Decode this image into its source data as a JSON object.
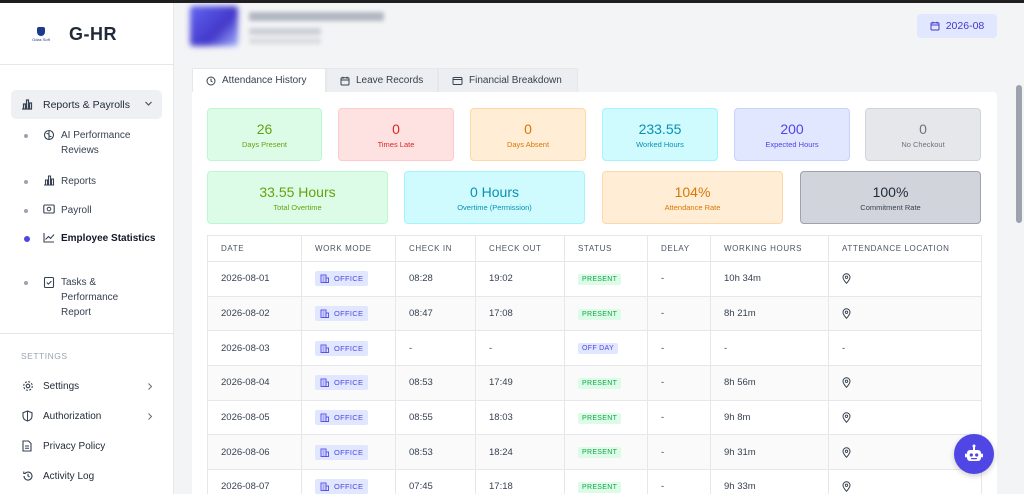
{
  "app": {
    "name": "G-HR",
    "logo_text": "Gdas Soft"
  },
  "sidebar": {
    "group": {
      "label": "Reports & Payrolls"
    },
    "sub_items": [
      {
        "label": "AI Performance Reviews",
        "icon": "brain-icon"
      },
      {
        "label": "Reports",
        "icon": "bar-chart-icon"
      },
      {
        "label": "Payroll",
        "icon": "banknote-icon"
      },
      {
        "label": "Employee Statistics",
        "icon": "line-chart-icon",
        "active": true
      },
      {
        "label": "Tasks & Performance Report",
        "icon": "clipboard-check-icon"
      }
    ],
    "section_label": "SETTINGS",
    "items": [
      {
        "label": "Settings",
        "icon": "gear-icon"
      },
      {
        "label": "Authorization",
        "icon": "shield-icon"
      },
      {
        "label": "Privacy Policy",
        "icon": "document-icon"
      },
      {
        "label": "Activity Log",
        "icon": "history-icon"
      }
    ]
  },
  "header": {
    "month": "2026-08"
  },
  "tabs": [
    {
      "label": "Attendance History",
      "icon": "clock-icon",
      "active": true
    },
    {
      "label": "Leave Records",
      "icon": "calendar-icon"
    },
    {
      "label": "Financial Breakdown",
      "icon": "wallet-icon"
    }
  ],
  "stats_row1": [
    {
      "value": "26",
      "label": "Days Present",
      "color": "green"
    },
    {
      "value": "0",
      "label": "Times Late",
      "color": "red"
    },
    {
      "value": "0",
      "label": "Days Absent",
      "color": "orange"
    },
    {
      "value": "233.55",
      "label": "Worked Hours",
      "color": "cyan"
    },
    {
      "value": "200",
      "label": "Expected Hours",
      "color": "indigo"
    },
    {
      "value": "0",
      "label": "No Checkout",
      "color": "gray"
    }
  ],
  "stats_row2": [
    {
      "value": "33.55 Hours",
      "label": "Total Overtime",
      "color": "green"
    },
    {
      "value": "0 Hours",
      "label": "Overtime (Permission)",
      "color": "cyan"
    },
    {
      "value": "104%",
      "label": "Attendance Rate",
      "color": "orange"
    },
    {
      "value": "100%",
      "label": "Commitment Rate",
      "color": "dark"
    }
  ],
  "table": {
    "columns": [
      "DATE",
      "WORK MODE",
      "CHECK IN",
      "CHECK OUT",
      "STATUS",
      "DELAY",
      "WORKING HOURS",
      "ATTENDANCE LOCATION"
    ],
    "rows": [
      {
        "date": "2026-08-01",
        "mode": "OFFICE",
        "check_in": "08:28",
        "check_out": "19:02",
        "status": "PRESENT",
        "delay": "-",
        "delay_color": "red",
        "hours": "10h 34m",
        "location": true
      },
      {
        "date": "2026-08-02",
        "mode": "OFFICE",
        "check_in": "08:47",
        "check_out": "17:08",
        "status": "PRESENT",
        "delay": "-",
        "delay_color": "none",
        "hours": "8h 21m",
        "location": true
      },
      {
        "date": "2026-08-03",
        "mode": "OFFICE",
        "check_in": "-",
        "check_out": "-",
        "status": "OFF DAY",
        "delay": "-",
        "delay_color": "orange",
        "hours": "-",
        "location": false
      },
      {
        "date": "2026-08-04",
        "mode": "OFFICE",
        "check_in": "08:53",
        "check_out": "17:49",
        "status": "PRESENT",
        "delay": "-",
        "delay_color": "red",
        "hours": "8h 56m",
        "location": true
      },
      {
        "date": "2026-08-05",
        "mode": "OFFICE",
        "check_in": "08:55",
        "check_out": "18:03",
        "status": "PRESENT",
        "delay": "-",
        "delay_color": "none",
        "hours": "9h 8m",
        "location": true
      },
      {
        "date": "2026-08-06",
        "mode": "OFFICE",
        "check_in": "08:53",
        "check_out": "18:24",
        "status": "PRESENT",
        "delay": "-",
        "delay_color": "none",
        "hours": "9h 31m",
        "location": true
      },
      {
        "date": "2026-08-07",
        "mode": "OFFICE",
        "check_in": "07:45",
        "check_out": "17:18",
        "status": "PRESENT",
        "delay": "-",
        "delay_color": "none",
        "hours": "9h 33m",
        "location": true
      }
    ]
  }
}
